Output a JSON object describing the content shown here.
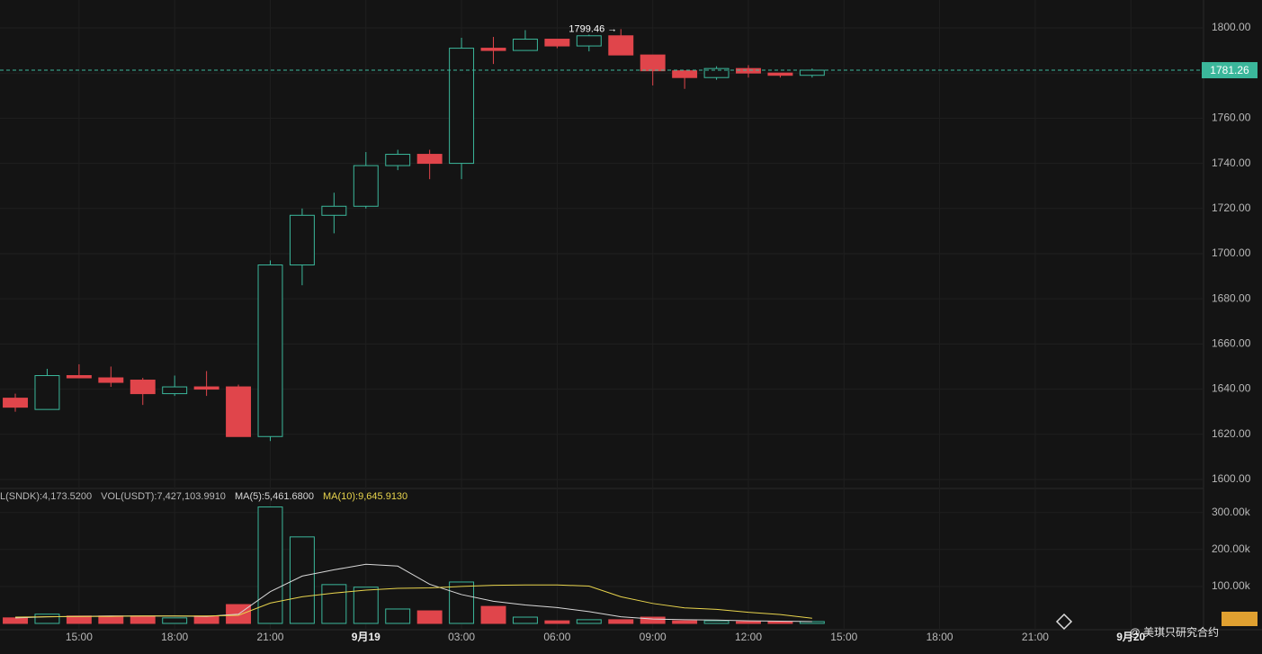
{
  "chart_data": [
    {
      "type": "candlestick",
      "x": [
        13,
        14,
        15,
        16,
        17,
        18,
        19,
        20,
        21,
        22,
        23,
        24,
        25,
        26,
        27,
        28,
        29,
        30,
        31,
        32,
        33,
        34,
        35,
        36,
        37,
        38
      ],
      "open": [
        1636,
        1631,
        1646,
        1645,
        1644,
        1638,
        1641,
        1641,
        1619,
        1695,
        1717,
        1721,
        1739,
        1744,
        1740,
        1791,
        1790,
        1795,
        1792,
        1796.5,
        1788,
        1781,
        1778,
        1782,
        1780,
        1779
      ],
      "high": [
        1638,
        1649,
        1651,
        1650,
        1645,
        1646,
        1648,
        1642,
        1697,
        1720,
        1727,
        1745,
        1746,
        1746,
        1795.6,
        1796,
        1799,
        1795,
        1797,
        1799.46,
        1788,
        1781,
        1783,
        1783.5,
        1780,
        1782
      ],
      "low": [
        1630,
        1631,
        1645,
        1641,
        1633,
        1637,
        1637,
        1619,
        1617,
        1686,
        1709,
        1720,
        1737,
        1733,
        1733,
        1784,
        1790,
        1791,
        1789.6,
        1788,
        1774.5,
        1773,
        1777,
        1778,
        1778,
        1778
      ],
      "close": [
        1632,
        1646,
        1645,
        1643,
        1638,
        1641,
        1640,
        1619,
        1695,
        1717,
        1721,
        1739,
        1744,
        1740,
        1791,
        1790,
        1795,
        1792,
        1796.5,
        1788,
        1781,
        1778,
        1782,
        1780,
        1779,
        1781.26
      ],
      "up_color": "#3bb79b",
      "down_color": "#e0454b",
      "xlim": [
        12.52,
        50.28
      ],
      "ylim": [
        1596,
        1812.35
      ],
      "yticks": [
        {
          "value": 1600,
          "label": "1600.00"
        },
        {
          "value": 1620,
          "label": "1620.00"
        },
        {
          "value": 1640,
          "label": "1640.00"
        },
        {
          "value": 1660,
          "label": "1660.00"
        },
        {
          "value": 1680,
          "label": "1680.00"
        },
        {
          "value": 1700,
          "label": "1700.00"
        },
        {
          "value": 1720,
          "label": "1720.00"
        },
        {
          "value": 1740,
          "label": "1740.00"
        },
        {
          "value": 1760,
          "label": "1760.00"
        },
        {
          "value": 1780,
          "label": "1780.00"
        },
        {
          "value": 1800,
          "label": "1800.00"
        }
      ],
      "last_price": {
        "value": 1781.26,
        "label": "1781.26"
      },
      "high_annotation": {
        "value": 1799.46,
        "label": "1799.46 →"
      },
      "grid": true
    },
    {
      "type": "bar",
      "series": [
        {
          "name": "L(SNDK):4,173.5200",
          "values": [
            15000,
            25000,
            20000,
            20000,
            20000,
            15000,
            20000,
            51000,
            315000,
            234000,
            105000,
            98000,
            39000,
            34000,
            112000,
            46000,
            17000,
            7000,
            10000,
            10000,
            17000,
            7000,
            7000,
            5000,
            5000,
            5000
          ]
        },
        {
          "name": "MA(5):5,461.6800",
          "type": "line",
          "color": "#d8d8d8",
          "values": [
            15000,
            18000,
            19000,
            20000,
            20000,
            20000,
            19000,
            25000,
            86000,
            128000,
            145000,
            160000,
            155000,
            106000,
            78000,
            60000,
            50000,
            43000,
            32000,
            18000,
            12000,
            10000,
            9000,
            7000,
            6000,
            5000
          ]
        },
        {
          "name": "MA(10):9,645.9130",
          "type": "line",
          "color": "#e8d44d",
          "values": [
            17000,
            18000,
            19000,
            19000,
            20000,
            20000,
            20000,
            22000,
            55000,
            72000,
            82000,
            90000,
            95000,
            96000,
            100000,
            103000,
            104000,
            104000,
            101000,
            72000,
            54000,
            42000,
            38000,
            30000,
            24000,
            14000
          ]
        }
      ],
      "info": "VOL(USDT):7,427,103.9910",
      "ylim": [
        0,
        365000
      ],
      "yticks": [
        {
          "value": 100000,
          "label": "100.00k"
        },
        {
          "value": 200000,
          "label": "200.00k"
        },
        {
          "value": 300000,
          "label": "300.00k"
        }
      ],
      "xticks": [
        {
          "value": 15,
          "label": "15:00"
        },
        {
          "value": 18,
          "label": "18:00"
        },
        {
          "value": 21,
          "label": "21:00"
        },
        {
          "value": 24,
          "label": "9月19"
        },
        {
          "value": 27,
          "label": "03:00"
        },
        {
          "value": 30,
          "label": "06:00"
        },
        {
          "value": 33,
          "label": "09:00"
        },
        {
          "value": 36,
          "label": "12:00"
        },
        {
          "value": 39,
          "label": "15:00"
        },
        {
          "value": 42,
          "label": "18:00"
        },
        {
          "value": 45,
          "label": "21:00"
        },
        {
          "value": 48,
          "label": "9月20"
        }
      ],
      "grid": true
    }
  ],
  "watermark": "@ 美琪只研究合约"
}
